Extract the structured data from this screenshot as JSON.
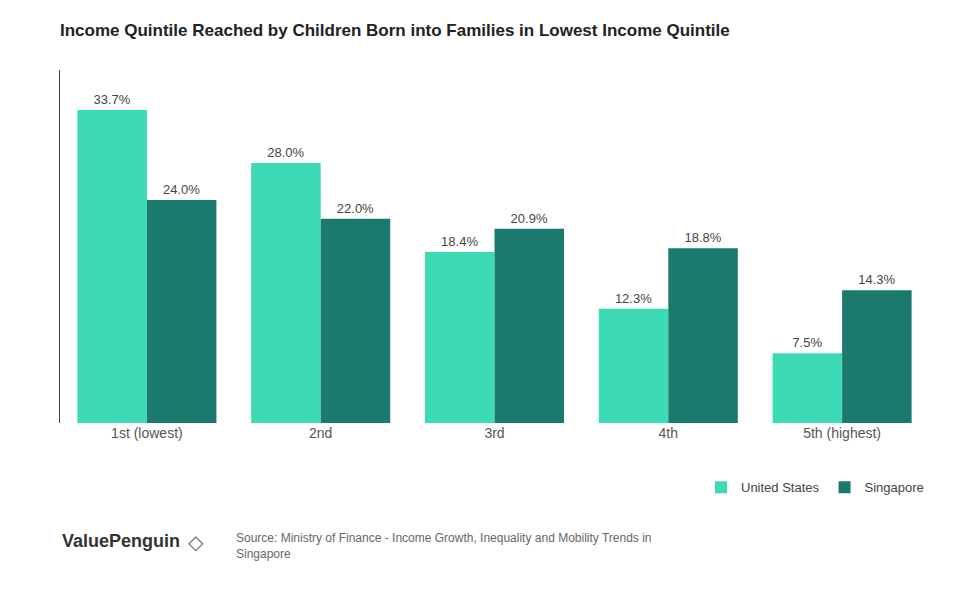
{
  "chart_data": {
    "type": "bar",
    "title": "Income Quintile Reached by Children Born into Families in Lowest Income Quintile",
    "categories": [
      "1st (lowest)",
      "2nd",
      "3rd",
      "4th",
      "5th (highest)"
    ],
    "series": [
      {
        "name": "United States",
        "color": "#3DDBB5",
        "values": [
          33.7,
          28.0,
          18.4,
          12.3,
          7.5
        ],
        "value_labels": [
          "33.7%",
          "28.0%",
          "18.4%",
          "12.3%",
          "7.5%"
        ]
      },
      {
        "name": "Singapore",
        "color": "#1A7A6E",
        "values": [
          24.0,
          22.0,
          20.9,
          18.8,
          14.3
        ],
        "value_labels": [
          "24.0%",
          "22.0%",
          "20.9%",
          "18.8%",
          "14.3%"
        ]
      }
    ],
    "ylim": [
      0,
      38
    ],
    "grid": false,
    "legend": "lower right",
    "data_labels": true,
    "tick_labels": "x",
    "annotations": [
      "ValuePenguin",
      "◇",
      "Source: Ministry of Finance - Income Growth, Inequality and Mobility Trends in\nSingapore"
    ]
  }
}
